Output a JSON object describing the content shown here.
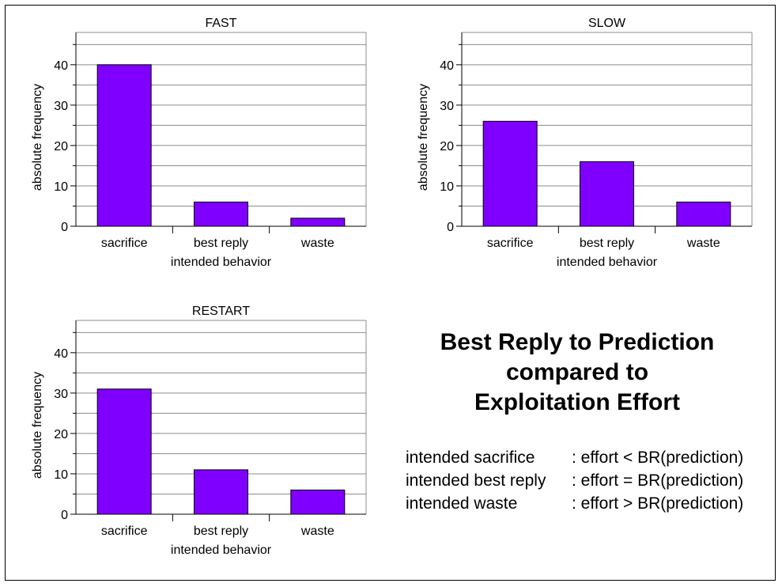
{
  "chart_data": [
    {
      "type": "bar",
      "title": "FAST",
      "xlabel": "intended behavior",
      "ylabel": "absolute frequency",
      "categories": [
        "sacrifice",
        "best reply",
        "waste"
      ],
      "values": [
        40,
        6,
        2
      ],
      "ylim": [
        0,
        48
      ],
      "yticks": [
        0,
        10,
        20,
        30,
        40
      ],
      "grid": true,
      "bar_color": "#7f00ff"
    },
    {
      "type": "bar",
      "title": "SLOW",
      "xlabel": "intended behavior",
      "ylabel": "absolute frequency",
      "categories": [
        "sacrifice",
        "best reply",
        "waste"
      ],
      "values": [
        26,
        16,
        6
      ],
      "ylim": [
        0,
        48
      ],
      "yticks": [
        0,
        10,
        20,
        30,
        40
      ],
      "grid": true,
      "bar_color": "#7f00ff"
    },
    {
      "type": "bar",
      "title": "RESTART",
      "xlabel": "intended behavior",
      "ylabel": "absolute frequency",
      "categories": [
        "sacrifice",
        "best reply",
        "waste"
      ],
      "values": [
        31,
        11,
        6
      ],
      "ylim": [
        0,
        48
      ],
      "yticks": [
        0,
        10,
        20,
        30,
        40
      ],
      "grid": true,
      "bar_color": "#7f00ff"
    }
  ],
  "summary": {
    "title_lines": [
      "Best Reply to Prediction",
      "compared to",
      "Exploitation Effort"
    ],
    "legend": [
      {
        "term": "intended sacrifice",
        "definition": ": effort < BR(prediction)"
      },
      {
        "term": "intended best reply",
        "definition": ": effort = BR(prediction)"
      },
      {
        "term": "intended waste",
        "definition": ": effort > BR(prediction)"
      }
    ]
  }
}
